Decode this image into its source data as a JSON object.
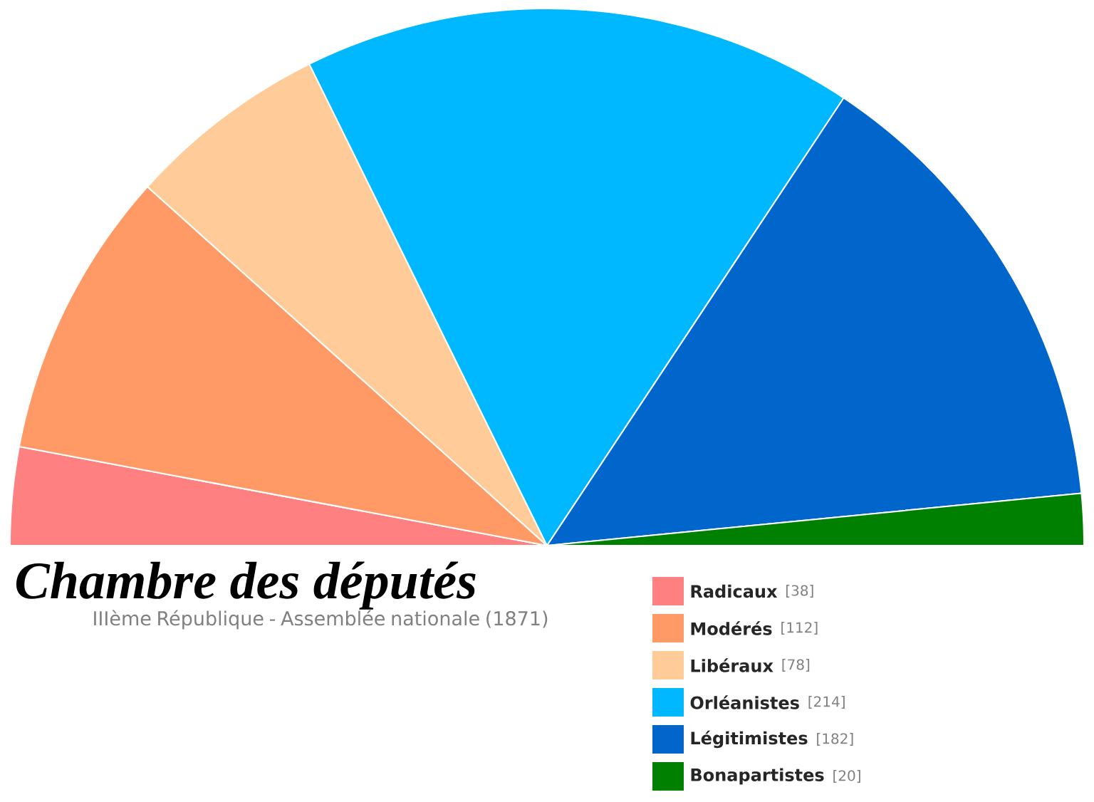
{
  "chart_data": {
    "type": "pie",
    "title": "Chambre des députés",
    "subtitle": "IIIème République - Assemblée nationale (1871)",
    "categories": [
      "Radicaux",
      "Modérés",
      "Libéraux",
      "Orléanistes",
      "Légitimistes",
      "Bonapartistes"
    ],
    "values": [
      38,
      112,
      78,
      214,
      182,
      20
    ],
    "value_labels": [
      "[38]",
      "[112]",
      "[78]",
      "[214]",
      "[182]",
      "[20]"
    ],
    "colors": [
      "#ff8080",
      "#ff9966",
      "#ffcc99",
      "#00b8ff",
      "#0066cc",
      "#008000"
    ],
    "legend": "bottom right"
  }
}
